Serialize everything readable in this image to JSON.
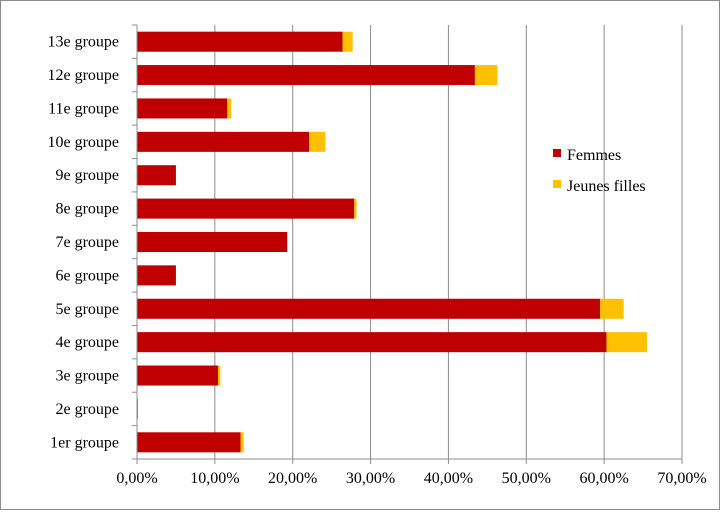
{
  "chart_data": {
    "type": "bar",
    "orientation": "horizontal",
    "stacked": true,
    "title": "",
    "xlabel": "",
    "ylabel": "",
    "categories": [
      "1er groupe",
      "2e groupe",
      "3e groupe",
      "4e groupe",
      "5e groupe",
      "6e groupe",
      "7e groupe",
      "8e groupe",
      "9e groupe",
      "10e groupe",
      "11e groupe",
      "12e groupe",
      "13e groupe"
    ],
    "series": [
      {
        "name": "Femmes",
        "color": "#c00000",
        "values": [
          13.3,
          0.1,
          10.4,
          60.3,
          59.5,
          5.0,
          19.3,
          27.9,
          5.0,
          22.1,
          11.6,
          43.4,
          26.4
        ]
      },
      {
        "name": "Jeunes filles",
        "color": "#ffc000",
        "values": [
          0.4,
          0.0,
          0.3,
          5.2,
          3.0,
          0.0,
          0.0,
          0.3,
          0.0,
          2.1,
          0.5,
          2.9,
          1.3
        ]
      }
    ],
    "xlim": [
      0,
      70
    ],
    "xticks": [
      "0,00%",
      "10,00%",
      "20,00%",
      "30,00%",
      "40,00%",
      "50,00%",
      "60,00%",
      "70,00%"
    ],
    "grid": true,
    "legend_position": "right"
  }
}
